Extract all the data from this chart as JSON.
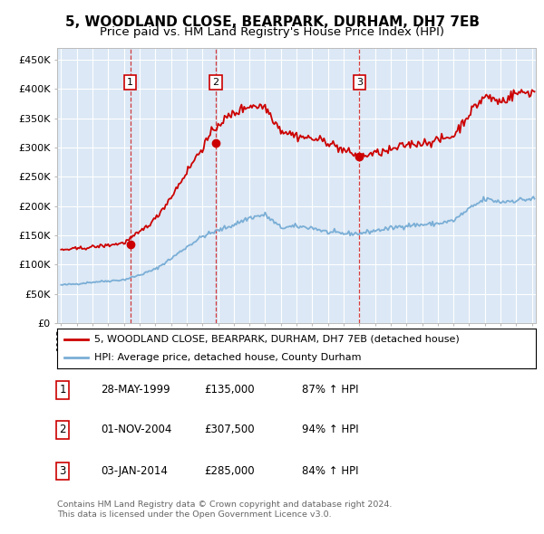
{
  "title": "5, WOODLAND CLOSE, BEARPARK, DURHAM, DH7 7EB",
  "subtitle": "Price paid vs. HM Land Registry's House Price Index (HPI)",
  "title_fontsize": 11,
  "subtitle_fontsize": 9.5,
  "sale_dates": [
    "1999-05-28",
    "2004-11-01",
    "2014-01-03"
  ],
  "sale_prices": [
    135000,
    307500,
    285000
  ],
  "sale_labels": [
    "1",
    "2",
    "3"
  ],
  "sale_label_info": [
    {
      "label": "1",
      "date": "28-MAY-1999",
      "price": "£135,000",
      "hpi": "87% ↑ HPI"
    },
    {
      "label": "2",
      "date": "01-NOV-2004",
      "price": "£307,500",
      "hpi": "94% ↑ HPI"
    },
    {
      "label": "3",
      "date": "03-JAN-2014",
      "price": "£285,000",
      "hpi": "84% ↑ HPI"
    }
  ],
  "red_line_color": "#cc0000",
  "blue_line_color": "#7aaed6",
  "sale_marker_color": "#cc0000",
  "vline_color": "#cc0000",
  "plot_bg_color": "#dce8f5",
  "grid_color": "#ffffff",
  "ylim": [
    0,
    470000
  ],
  "yticks": [
    0,
    50000,
    100000,
    150000,
    200000,
    250000,
    300000,
    350000,
    400000,
    450000
  ],
  "ytick_labels": [
    "£0",
    "£50K",
    "£100K",
    "£150K",
    "£200K",
    "£250K",
    "£300K",
    "£350K",
    "£400K",
    "£450K"
  ],
  "legend_line1": "5, WOODLAND CLOSE, BEARPARK, DURHAM, DH7 7EB (detached house)",
  "legend_line2": "HPI: Average price, detached house, County Durham",
  "footer1": "Contains HM Land Registry data © Crown copyright and database right 2024.",
  "footer2": "This data is licensed under the Open Government Licence v3.0.",
  "hpi_base_values": {
    "1995": 65000,
    "1996": 67000,
    "1997": 70000,
    "1998": 72000,
    "1999": 74000,
    "2000": 82000,
    "2001": 92000,
    "2002": 110000,
    "2003": 130000,
    "2004": 148000,
    "2005": 158000,
    "2006": 168000,
    "2007": 180000,
    "2008": 185000,
    "2009": 163000,
    "2010": 165000,
    "2011": 163000,
    "2012": 155000,
    "2013": 153000,
    "2014": 153000,
    "2015": 158000,
    "2016": 162000,
    "2017": 167000,
    "2018": 168000,
    "2019": 170000,
    "2020": 175000,
    "2021": 195000,
    "2022": 212000,
    "2023": 207000,
    "2024": 210000,
    "2025": 212000
  },
  "prop_base_values": {
    "1995": 125000,
    "1996": 127000,
    "1997": 130000,
    "1998": 133000,
    "1999": 137000,
    "2000": 155000,
    "2001": 178000,
    "2002": 215000,
    "2003": 258000,
    "2004": 300000,
    "2005": 340000,
    "2006": 358000,
    "2007": 372000,
    "2008": 370000,
    "2009": 330000,
    "2010": 320000,
    "2011": 315000,
    "2012": 310000,
    "2013": 295000,
    "2014": 285000,
    "2015": 290000,
    "2016": 295000,
    "2017": 305000,
    "2018": 308000,
    "2019": 312000,
    "2020": 320000,
    "2021": 358000,
    "2022": 388000,
    "2023": 378000,
    "2024": 393000,
    "2025": 395000
  }
}
